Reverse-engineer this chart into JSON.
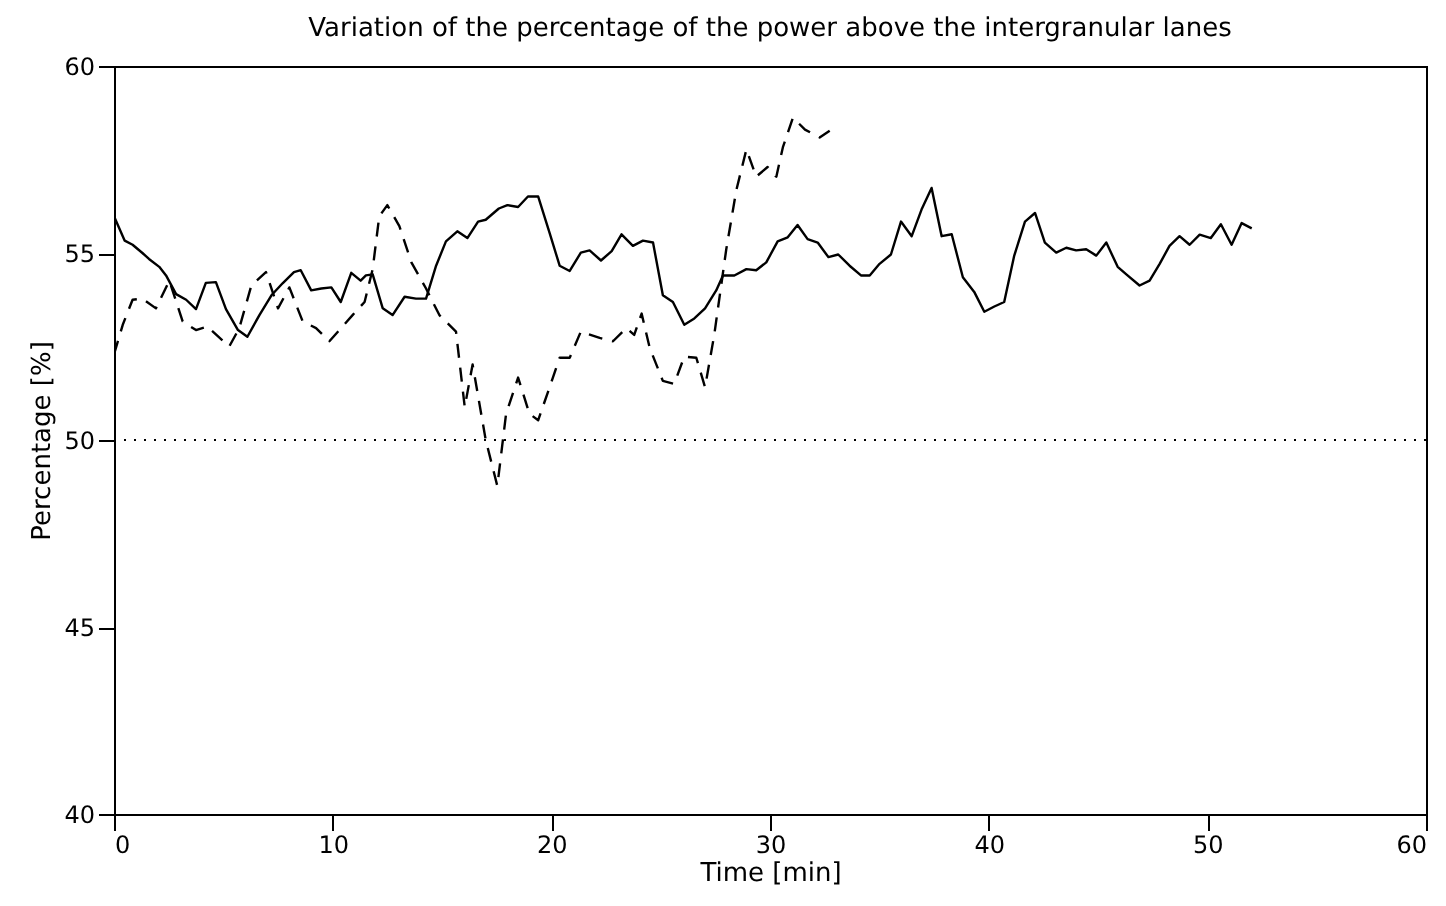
{
  "chart_data": {
    "type": "line",
    "title": "Variation of the percentage of the power above the intergranular lanes",
    "xlabel": "Time [min]",
    "ylabel": "Percentage [%]",
    "xlim": [
      0,
      60
    ],
    "xticks": [
      0,
      10,
      20,
      30,
      40,
      50,
      60
    ],
    "ylim": [
      40,
      60
    ],
    "yticks": [
      40,
      45,
      50,
      55,
      60
    ],
    "grid": false,
    "ref_lines": [
      {
        "axis": "y",
        "value": 50,
        "line_style": "dotted",
        "color": "#000000"
      }
    ],
    "series": [
      {
        "color": "#000000",
        "line_style": "solid",
        "x": [
          0,
          0.49,
          0.85,
          1.3,
          1.6,
          2.07,
          2.38,
          2.84,
          3.3,
          3.75,
          4.2,
          4.66,
          5.12,
          5.67,
          6.1,
          6.65,
          7.2,
          7.71,
          8.23,
          8.54,
          9.02,
          9.48,
          9.94,
          10.37,
          10.85,
          11.28,
          11.52,
          11.83,
          12.29,
          12.74,
          13.29,
          13.81,
          14.27,
          14.73,
          15.18,
          15.7,
          16.16,
          16.65,
          17.0,
          17.6,
          17.99,
          18.48,
          18.93,
          19.4,
          19.92,
          20.38,
          20.84,
          21.35,
          21.75,
          22.27,
          22.76,
          23.21,
          23.73,
          24.19,
          24.65,
          25.1,
          25.56,
          26.08,
          26.54,
          27.03,
          27.54,
          27.85,
          28.37,
          28.92,
          29.37,
          29.83,
          30.35,
          30.81,
          31.26,
          31.72,
          32.18,
          32.67,
          33.12,
          33.64,
          34.16,
          34.56,
          35.01,
          35.53,
          35.99,
          36.48,
          36.93,
          37.39,
          37.85,
          38.31,
          38.82,
          39.34,
          39.8,
          40.26,
          40.71,
          41.17,
          41.66,
          42.12,
          42.57,
          43.09,
          43.55,
          44.0,
          44.46,
          44.92,
          45.38,
          45.9,
          46.35,
          46.9,
          47.36,
          47.82,
          48.27,
          48.73,
          49.19,
          49.65,
          50.16,
          50.62,
          51.11,
          51.57,
          52.03
        ],
        "values": [
          55.98,
          55.33,
          55.22,
          55.0,
          54.84,
          54.63,
          54.4,
          53.9,
          53.75,
          53.5,
          54.2,
          54.22,
          53.5,
          52.94,
          52.76,
          53.34,
          53.87,
          54.19,
          54.49,
          54.54,
          54.0,
          54.05,
          54.08,
          53.69,
          54.47,
          54.26,
          54.4,
          54.43,
          53.52,
          53.34,
          53.83,
          53.78,
          53.78,
          54.66,
          55.31,
          55.58,
          55.4,
          55.84,
          55.89,
          56.19,
          56.28,
          56.23,
          56.51,
          56.51,
          55.54,
          54.66,
          54.52,
          55.01,
          55.07,
          54.8,
          55.05,
          55.5,
          55.19,
          55.33,
          55.28,
          53.87,
          53.69,
          53.08,
          53.25,
          53.52,
          54.0,
          54.4,
          54.4,
          54.57,
          54.54,
          54.75,
          55.31,
          55.42,
          55.75,
          55.37,
          55.28,
          54.89,
          54.96,
          54.66,
          54.4,
          54.4,
          54.71,
          54.96,
          55.84,
          55.45,
          56.16,
          56.74,
          55.45,
          55.5,
          54.35,
          53.96,
          53.43,
          53.57,
          53.69,
          54.93,
          55.84,
          56.07,
          55.28,
          55.01,
          55.14,
          55.07,
          55.1,
          54.93,
          55.28,
          54.63,
          54.4,
          54.13,
          54.26,
          54.71,
          55.19,
          55.45,
          55.22,
          55.49,
          55.4,
          55.77,
          55.22,
          55.8,
          55.66
        ]
      },
      {
        "color": "#000000",
        "line_style": "dashed",
        "x": [
          0,
          0.4,
          0.85,
          1.3,
          1.92,
          2.53,
          3.14,
          3.75,
          4.27,
          5.27,
          5.73,
          6.28,
          6.95,
          7.5,
          8.02,
          8.63,
          9.24,
          9.85,
          10.91,
          11.46,
          11.83,
          12.13,
          12.5,
          13.05,
          13.6,
          14.27,
          14.88,
          15.64,
          16.04,
          16.4,
          17.0,
          17.53,
          17.93,
          18.48,
          19.0,
          19.4,
          19.92,
          20.38,
          20.84,
          21.35,
          22.21,
          22.82,
          23.43,
          23.79,
          24.13,
          24.5,
          25.1,
          25.62,
          26.08,
          26.63,
          27.03,
          27.45,
          28.0,
          28.46,
          28.92,
          29.37,
          29.89,
          30.29,
          30.59,
          31.05,
          31.6,
          32.27,
          32.73
        ],
        "values": [
          52.29,
          53.08,
          53.75,
          53.78,
          53.52,
          54.26,
          53.17,
          52.94,
          53.03,
          52.5,
          52.99,
          54.13,
          54.49,
          53.52,
          54.08,
          53.17,
          52.99,
          52.64,
          53.34,
          53.69,
          54.57,
          55.98,
          56.28,
          55.72,
          54.75,
          54.05,
          53.34,
          52.9,
          50.88,
          52.02,
          50.0,
          48.77,
          50.7,
          51.67,
          50.7,
          50.53,
          51.41,
          52.2,
          52.2,
          52.9,
          52.73,
          52.64,
          52.99,
          52.81,
          53.38,
          52.46,
          51.58,
          51.5,
          52.23,
          52.2,
          51.41,
          52.81,
          55.1,
          56.68,
          57.77,
          57.04,
          57.3,
          57.04,
          57.83,
          58.62,
          58.3,
          58.09,
          58.27
        ]
      }
    ]
  }
}
